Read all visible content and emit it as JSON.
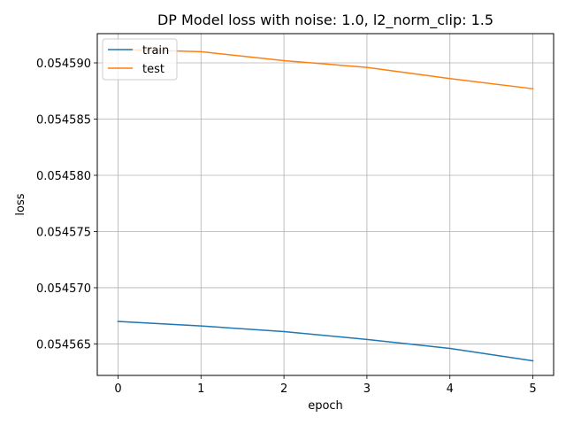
{
  "chart_data": {
    "type": "line",
    "title": "DP Model loss with noise: 1.0, l2_norm_clip: 1.5",
    "xlabel": "epoch",
    "ylabel": "loss",
    "grid": true,
    "legend_position": "upper-left",
    "x": [
      0,
      1,
      2,
      3,
      4,
      5
    ],
    "xlim": [
      -0.25,
      5.25
    ],
    "ylim": [
      0.0545622,
      0.0545926
    ],
    "xticks": [
      0,
      1,
      2,
      3,
      4,
      5
    ],
    "xtick_labels": [
      "0",
      "1",
      "2",
      "3",
      "4",
      "5"
    ],
    "yticks": [
      0.054565,
      0.05457,
      0.054575,
      0.05458,
      0.054585,
      0.05459
    ],
    "ytick_labels": [
      "0.054565",
      "0.054570",
      "0.054575",
      "0.054580",
      "0.054585",
      "0.054590"
    ],
    "series": [
      {
        "name": "train",
        "color": "#1f77b4",
        "values": [
          0.054567,
          0.0545666,
          0.0545661,
          0.0545654,
          0.0545646,
          0.0545635
        ]
      },
      {
        "name": "test",
        "color": "#ff7f0e",
        "values": [
          0.0545912,
          0.054591,
          0.0545902,
          0.0545896,
          0.0545886,
          0.0545877
        ]
      }
    ]
  }
}
